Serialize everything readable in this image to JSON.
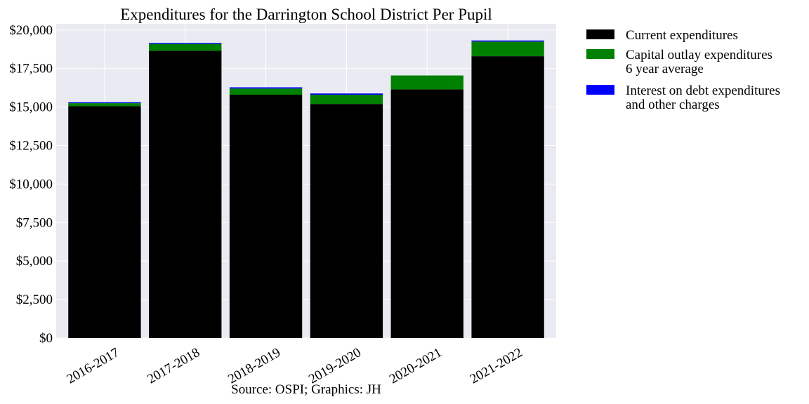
{
  "chart_data": {
    "type": "bar",
    "stacked": true,
    "title": "Expenditures for the Darrington School District Per Pupil",
    "xlabel": "",
    "ylabel": "",
    "source_note": "Source: OSPI; Graphics: JH",
    "categories": [
      "2016-2017",
      "2017-2018",
      "2018-2019",
      "2019-2020",
      "2020-2021",
      "2021-2022"
    ],
    "series": [
      {
        "name": "Current expenditures",
        "label_lines": [
          "Current expenditures"
        ],
        "color": "#000000",
        "values": [
          15050,
          18650,
          15800,
          15200,
          16150,
          18300
        ]
      },
      {
        "name": "Capital outlay expenditures 6 year average",
        "label_lines": [
          "Capital outlay expenditures",
          "6 year average"
        ],
        "color": "#008000",
        "values": [
          200,
          450,
          400,
          600,
          900,
          950
        ]
      },
      {
        "name": "Interest on debt expenditures and other charges",
        "label_lines": [
          "Interest on debt expenditures",
          "and other charges"
        ],
        "color": "#0000ff",
        "values": [
          60,
          60,
          80,
          80,
          0,
          70
        ]
      }
    ],
    "ylim": [
      0,
      20400
    ],
    "yticks": [
      0,
      2500,
      5000,
      7500,
      10000,
      12500,
      15000,
      17500,
      20000
    ],
    "ytick_labels": [
      "$0",
      "$2,500",
      "$5,000",
      "$7,500",
      "$10,000",
      "$12,500",
      "$15,000",
      "$17,500",
      "$20,000"
    ],
    "grid": true,
    "legend_position": "outside-top-right",
    "colors": {
      "plot_background": "#eaeaf2",
      "grid": "#ffffff"
    }
  }
}
